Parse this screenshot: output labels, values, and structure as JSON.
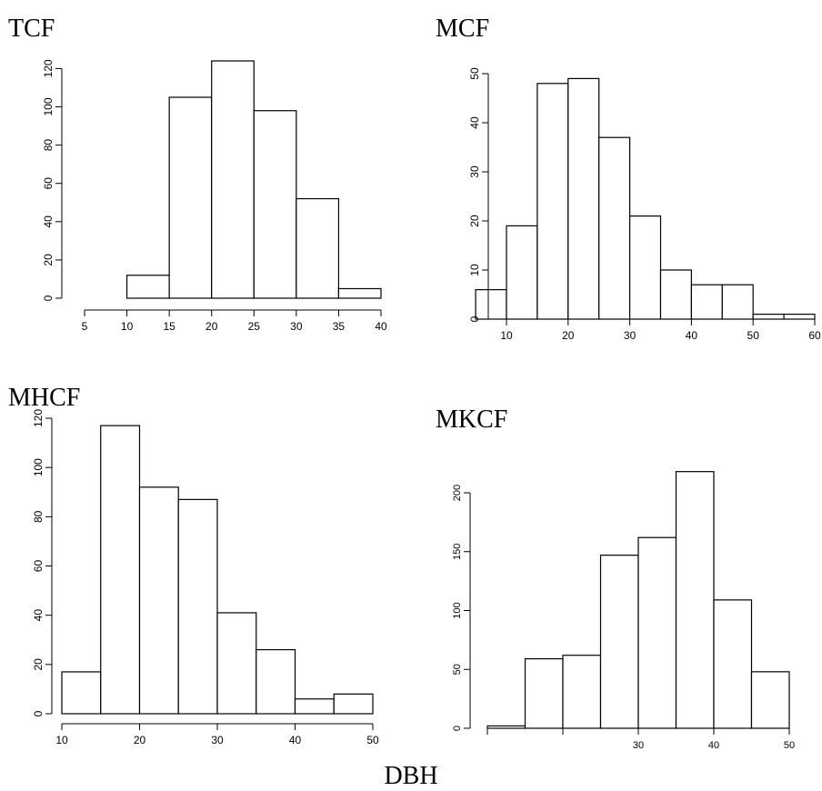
{
  "figure": {
    "xlabel": "DBH"
  },
  "chart_data": [
    {
      "type": "bar",
      "title": "TCF",
      "bin_edges": [
        5,
        10,
        15,
        20,
        25,
        30,
        35,
        40
      ],
      "values": [
        0,
        12,
        105,
        124,
        98,
        52,
        5
      ],
      "xticks": [
        "5",
        "10",
        "15",
        "20",
        "25",
        "30",
        "35",
        "40"
      ],
      "yticks": [
        "0",
        "20",
        "40",
        "60",
        "80",
        "100",
        "120"
      ],
      "xlim": [
        5,
        40
      ],
      "ylim": [
        0,
        124
      ]
    },
    {
      "type": "bar",
      "title": "MCF",
      "bin_edges": [
        5,
        10,
        15,
        20,
        25,
        30,
        35,
        40,
        45,
        50,
        55,
        60
      ],
      "values": [
        6,
        19,
        48,
        49,
        37,
        21,
        10,
        7,
        7,
        1,
        1
      ],
      "xticks": [
        "10",
        "20",
        "30",
        "40",
        "50",
        "60"
      ],
      "yticks": [
        "0",
        "10",
        "20",
        "30",
        "40",
        "50"
      ],
      "xlim": [
        10,
        60
      ],
      "ylim": [
        0,
        50
      ]
    },
    {
      "type": "bar",
      "title": "MHCF",
      "bin_edges": [
        10,
        15,
        20,
        25,
        30,
        35,
        40,
        45,
        50
      ],
      "values": [
        17,
        117,
        92,
        87,
        41,
        26,
        6,
        8
      ],
      "xticks": [
        "10",
        "20",
        "30",
        "40",
        "50"
      ],
      "yticks": [
        "0",
        "20",
        "40",
        "60",
        "80",
        "100",
        "120"
      ],
      "xlim": [
        10,
        50
      ],
      "ylim": [
        0,
        120
      ]
    },
    {
      "type": "bar",
      "title": "MKCF",
      "bin_edges": [
        10,
        15,
        20,
        25,
        30,
        35,
        40,
        45,
        50
      ],
      "values": [
        2,
        59,
        62,
        147,
        162,
        218,
        109,
        48
      ],
      "xticks": [
        "",
        "",
        "",
        "30",
        "40",
        "50"
      ],
      "yticks": [
        "0",
        "50",
        "100",
        "150",
        "200"
      ],
      "xlim": [
        10,
        50
      ],
      "ylim": [
        0,
        200
      ]
    }
  ]
}
